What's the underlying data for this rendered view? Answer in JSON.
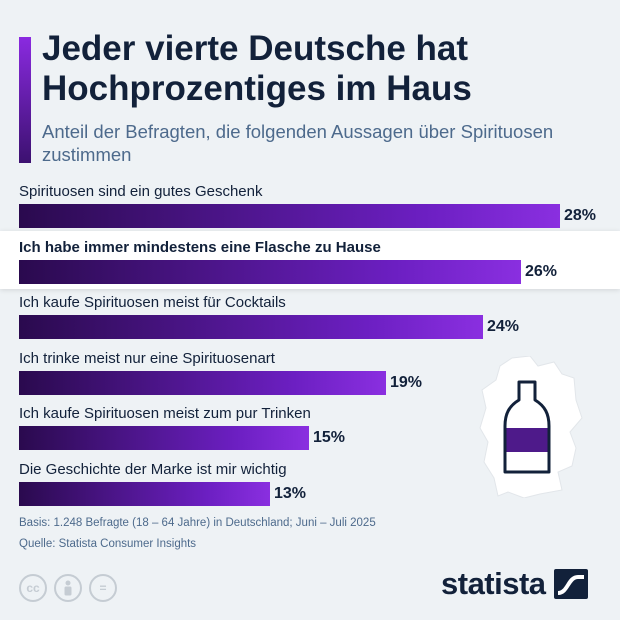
{
  "header": {
    "title": "Jeder vierte Deutsche hat Hochprozentiges im Haus",
    "subtitle": "Anteil der Befragten, die folgenden Aussagen über Spirituosen zustimmen"
  },
  "chart_data": {
    "type": "bar",
    "orientation": "horizontal",
    "categories": [
      "Spirituosen sind ein gutes Geschenk",
      "Ich habe immer mindestens eine Flasche zu Hause",
      "Ich kaufe Spirituosen meist für Cocktails",
      "Ich trinke meist nur eine Spirituosenart",
      "Ich kaufe Spirituosen meist zum pur Trinken",
      "Die Geschichte der Marke ist mir wichtig"
    ],
    "values": [
      28,
      26,
      24,
      19,
      15,
      13
    ],
    "value_labels": [
      "28%",
      "26%",
      "24%",
      "19%",
      "15%",
      "13%"
    ],
    "highlighted_index": 1,
    "xlim": [
      0,
      28
    ],
    "grid": false,
    "legend": "none",
    "colors": {
      "bar_start": "#2a0a4e",
      "bar_end": "#8a2fe0"
    }
  },
  "footer": {
    "source_line1": "Basis: 1.248 Befragte (18 – 64 Jahre) in Deutschland; Juni – Juli 2025",
    "source_line2": "Quelle: Statista Consumer Insights",
    "license_icons": [
      "cc-icon",
      "attribution-icon",
      "no-derivatives-icon"
    ],
    "cc_label": "cc",
    "nd_label": "=",
    "logo_text": "statista"
  },
  "colors": {
    "background": "#eef2f5",
    "title": "#12213a",
    "subtitle": "#4d6a8c",
    "accent": "#6c1fc2"
  }
}
